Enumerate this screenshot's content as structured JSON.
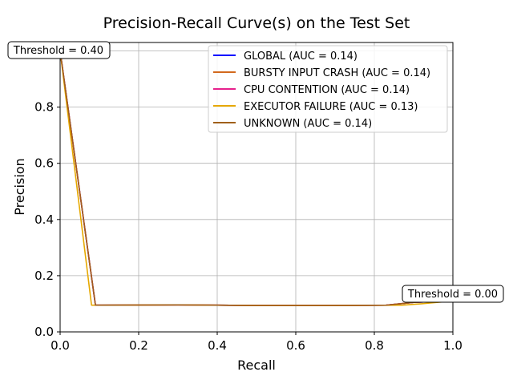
{
  "chart_data": {
    "type": "line",
    "title": "Precision-Recall Curve(s) on the Test Set",
    "xlabel": "Recall",
    "ylabel": "Precision",
    "xlim": [
      0.0,
      1.0
    ],
    "ylim": [
      0.0,
      1.03
    ],
    "x_ticks": [
      "0.0",
      "0.2",
      "0.4",
      "0.6",
      "0.8",
      "1.0"
    ],
    "x_tick_values": [
      0.0,
      0.2,
      0.4,
      0.6,
      0.8,
      1.0
    ],
    "y_ticks": [
      "0.0",
      "0.2",
      "0.4",
      "0.6",
      "0.8"
    ],
    "y_tick_values": [
      0.0,
      0.2,
      0.4,
      0.6,
      0.8
    ],
    "grid": true,
    "legend_position": "upper-right",
    "series": [
      {
        "name": "GLOBAL (AUC = 0.14)",
        "color": "#0000ff",
        "x": [
          0.0,
          0.09,
          0.3,
          0.5,
          0.7,
          0.83,
          0.9,
          0.95,
          1.0
        ],
        "y": [
          1.0,
          0.095,
          0.096,
          0.094,
          0.094,
          0.095,
          0.105,
          0.108,
          0.11
        ]
      },
      {
        "name": "BURSTY INPUT CRASH (AUC = 0.14)",
        "color": "#d2691e",
        "x": [
          0.0,
          0.09,
          0.3,
          0.5,
          0.7,
          0.83,
          0.9,
          0.95,
          1.0
        ],
        "y": [
          1.0,
          0.095,
          0.096,
          0.094,
          0.094,
          0.095,
          0.105,
          0.108,
          0.11
        ]
      },
      {
        "name": "CPU CONTENTION (AUC = 0.14)",
        "color": "#e6218c",
        "x": [
          0.0,
          0.09,
          0.3,
          0.5,
          0.7,
          0.83,
          0.9,
          0.95,
          1.0
        ],
        "y": [
          1.0,
          0.095,
          0.096,
          0.094,
          0.094,
          0.095,
          0.105,
          0.108,
          0.11
        ]
      },
      {
        "name": "EXECUTOR FAILURE (AUC = 0.13)",
        "color": "#e6a800",
        "x": [
          0.0,
          0.08,
          0.3,
          0.5,
          0.7,
          0.87,
          0.92,
          0.96,
          1.0
        ],
        "y": [
          1.0,
          0.095,
          0.096,
          0.094,
          0.094,
          0.095,
          0.1,
          0.105,
          0.11
        ]
      },
      {
        "name": "UNKNOWN (AUC = 0.14)",
        "color": "#a0601a",
        "x": [
          0.0,
          0.09,
          0.3,
          0.5,
          0.7,
          0.83,
          0.9,
          0.95,
          1.0
        ],
        "y": [
          1.0,
          0.095,
          0.096,
          0.094,
          0.094,
          0.095,
          0.105,
          0.108,
          0.11
        ]
      }
    ],
    "annotations": [
      {
        "text": "Threshold = 0.40",
        "x": 0.0,
        "y": 1.0
      },
      {
        "text": "Threshold = 0.00",
        "x": 1.0,
        "y": 0.11
      }
    ]
  }
}
